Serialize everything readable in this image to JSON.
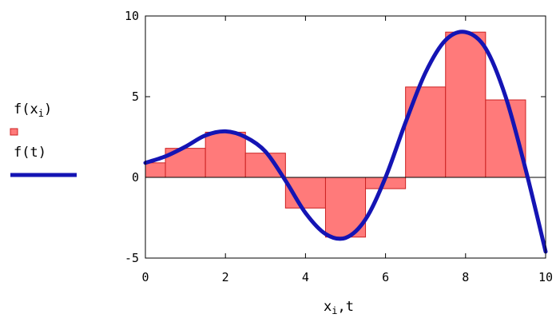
{
  "chart_data": {
    "type": "bar",
    "xlabel_parts": {
      "base": "x",
      "sub": "i",
      "rest": ",t"
    },
    "xlim": [
      0,
      10
    ],
    "ylim": [
      -5,
      10
    ],
    "x_ticks": [
      "0",
      "2",
      "4",
      "6",
      "8",
      "10"
    ],
    "y_ticks": [
      "10",
      "5",
      "0",
      "-5"
    ],
    "grid": false,
    "legend": {
      "placement": "left",
      "bar_entry": {
        "base": "f(x",
        "sub": "i",
        "close": ")"
      },
      "line_entry": "f(t)"
    },
    "bar_series": {
      "name": "f(x_i)",
      "color": "#ff7a7a",
      "edge_color": "#cc2222",
      "width": 1,
      "x": [
        0,
        1,
        2,
        3,
        4,
        5,
        6,
        7,
        8,
        9
      ],
      "values": [
        0.9,
        1.8,
        2.8,
        1.5,
        -1.9,
        -3.7,
        -0.7,
        5.6,
        9.0,
        4.8
      ]
    },
    "line_series": {
      "name": "f(t)",
      "color": "#1414b4",
      "x": [
        0,
        0.5,
        1,
        1.5,
        2,
        2.5,
        3,
        3.5,
        4,
        4.5,
        5,
        5.5,
        6,
        6.5,
        7,
        7.5,
        8,
        8.5,
        9,
        9.5,
        10
      ],
      "y": [
        0.9,
        1.3,
        1.9,
        2.6,
        2.85,
        2.5,
        1.6,
        -0.2,
        -2.2,
        -3.5,
        -3.75,
        -2.6,
        0.0,
        3.4,
        6.5,
        8.5,
        9.0,
        8.0,
        5.0,
        0.5,
        -4.6
      ]
    }
  }
}
